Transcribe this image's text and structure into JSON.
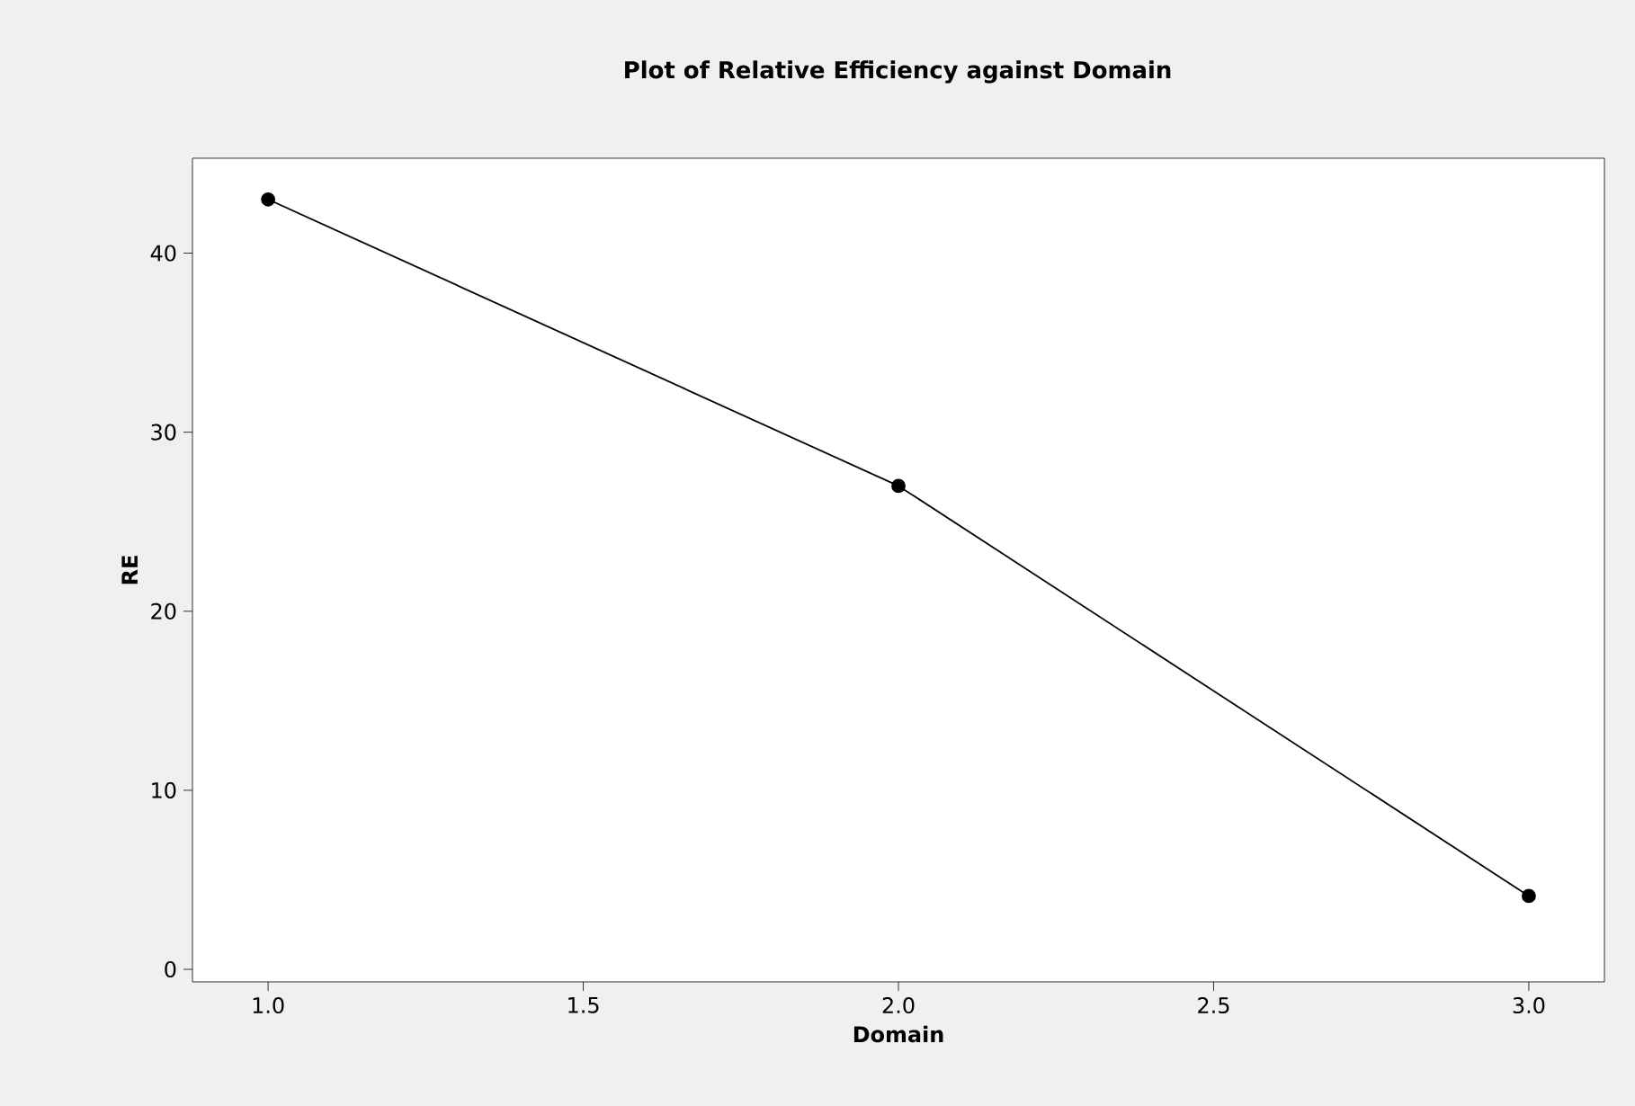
{
  "chart_data": {
    "type": "line",
    "title": "Plot of Relative Efficiency against Domain",
    "xlabel": "Domain",
    "ylabel": "RE",
    "x": [
      1.0,
      2.0,
      3.0
    ],
    "series": [
      {
        "color": "#000000",
        "values": [
          43,
          27,
          4.1
        ]
      }
    ],
    "xlim": [
      0.88,
      3.12
    ],
    "ylim": [
      -0.7,
      45.3
    ],
    "xticks": [
      {
        "value": 1.0,
        "label": "1.0"
      },
      {
        "value": 1.5,
        "label": "1.5"
      },
      {
        "value": 2.0,
        "label": "2.0"
      },
      {
        "value": 2.5,
        "label": "2.5"
      },
      {
        "value": 3.0,
        "label": "3.0"
      }
    ],
    "yticks": [
      0,
      10,
      20,
      30,
      40
    ],
    "marker": "circle",
    "line_style": "solid",
    "grid": false
  }
}
